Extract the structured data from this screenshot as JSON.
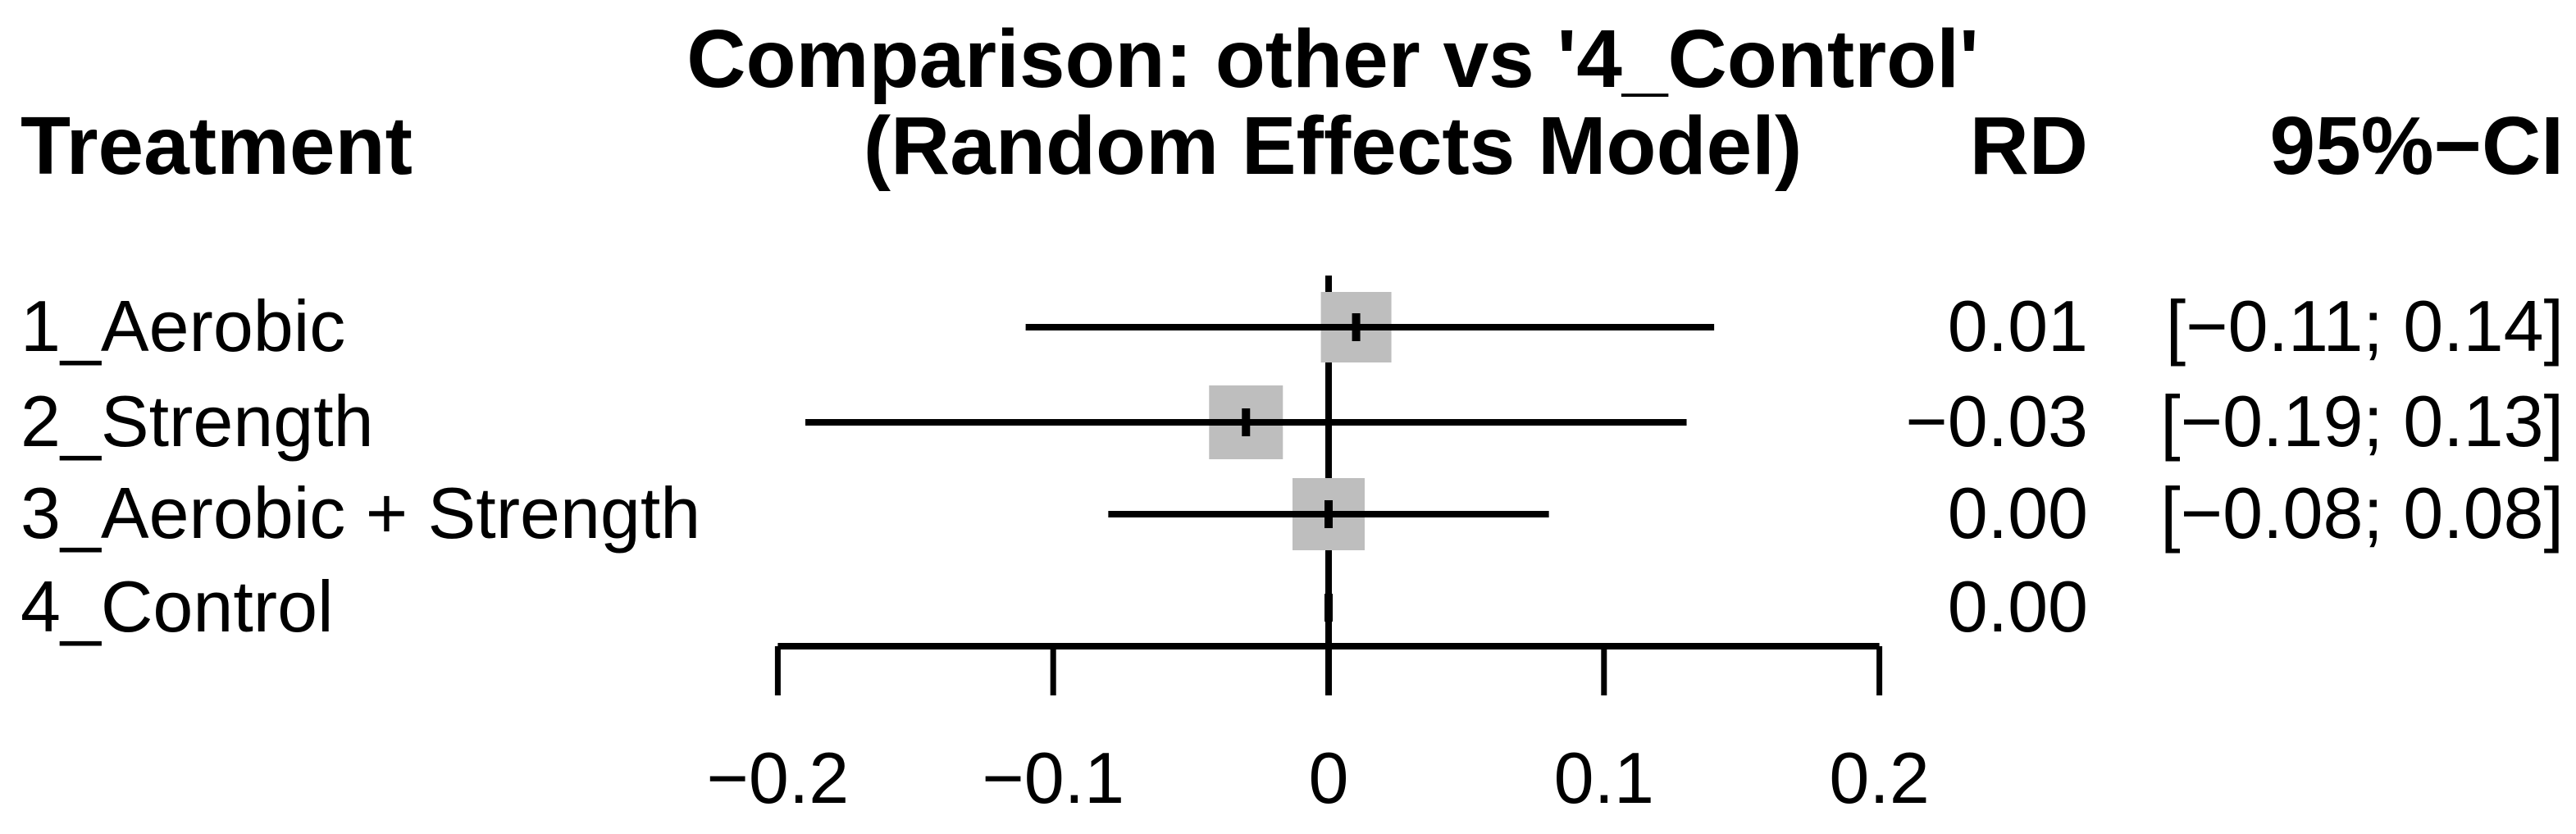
{
  "header": {
    "title_line1": "Comparison: other vs '4_Control'",
    "title_line2": "(Random Effects Model)",
    "treatment_label": "Treatment",
    "rd_label": "RD",
    "ci_label": "95%−CI"
  },
  "chart_data": {
    "type": "forest",
    "title": "Comparison: other vs '4_Control' (Random Effects Model)",
    "effect_measure": "RD",
    "reference_treatment": "4_Control",
    "x_axis": {
      "min": -0.2,
      "max": 0.2,
      "ticks": [
        -0.2,
        -0.1,
        0,
        0.1,
        0.2
      ],
      "tick_labels": [
        "−0.2",
        "−0.1",
        "0",
        "0.1",
        "0.2"
      ],
      "zero_line": 0
    },
    "rows": [
      {
        "label": "1_Aerobic",
        "estimate": 0.01,
        "lower": -0.11,
        "upper": 0.14,
        "rd_text": "0.01",
        "ci_text": "[−0.11; 0.14]",
        "square": true
      },
      {
        "label": "2_Strength",
        "estimate": -0.03,
        "lower": -0.19,
        "upper": 0.13,
        "rd_text": "−0.03",
        "ci_text": "[−0.19; 0.13]",
        "square": true
      },
      {
        "label": "3_Aerobic + Strength",
        "estimate": 0.0,
        "lower": -0.08,
        "upper": 0.08,
        "rd_text": "0.00",
        "ci_text": "[−0.08; 0.08]",
        "square": true
      },
      {
        "label": "4_Control",
        "estimate": 0.0,
        "lower": null,
        "upper": null,
        "rd_text": "0.00",
        "ci_text": "",
        "square": false
      }
    ],
    "colors": {
      "square_fill": "#bebebe",
      "line": "#000000",
      "background": "#ffffff",
      "text": "#000000"
    },
    "legend": "none",
    "grid": false
  }
}
